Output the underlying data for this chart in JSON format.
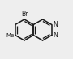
{
  "bg_color": "#eeeeee",
  "bond_color": "#1a1a1a",
  "label_color": "#1a1a1a",
  "br_label": "Br",
  "n_label": "N",
  "me_label": "Me",
  "figsize": [
    0.9,
    0.73
  ],
  "dpi": 100,
  "bond_lw": 1.1,
  "font_size": 5.5
}
